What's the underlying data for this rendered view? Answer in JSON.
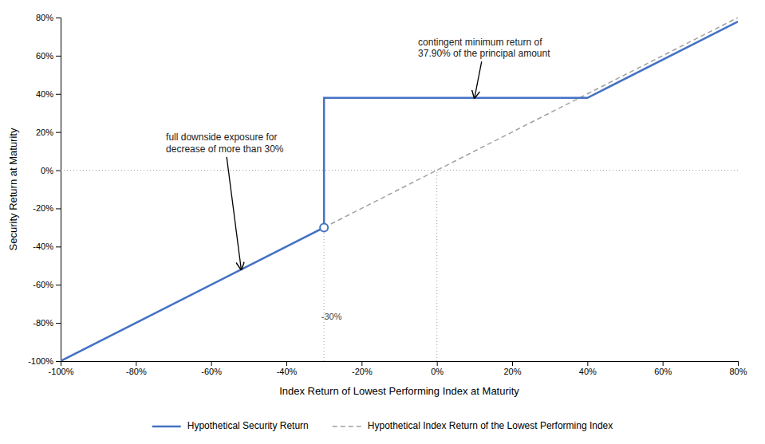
{
  "chart_data": {
    "type": "line",
    "xlabel": "Index Return of Lowest Performing Index at Maturity",
    "ylabel": "Security Return at Maturity",
    "xlim": [
      -1.0,
      0.8
    ],
    "ylim": [
      -1.0,
      0.8
    ],
    "xticks": [
      {
        "value": -1.0,
        "label": "-100%"
      },
      {
        "value": -0.8,
        "label": "-80%"
      },
      {
        "value": -0.6,
        "label": "-60%"
      },
      {
        "value": -0.4,
        "label": "-40%"
      },
      {
        "value": -0.2,
        "label": "-20%"
      },
      {
        "value": 0.0,
        "label": "0%"
      },
      {
        "value": 0.2,
        "label": "20%"
      },
      {
        "value": 0.4,
        "label": "40%"
      },
      {
        "value": 0.6,
        "label": "60%"
      },
      {
        "value": 0.8,
        "label": "80%"
      }
    ],
    "yticks": [
      {
        "value": -1.0,
        "label": "-100%"
      },
      {
        "value": -0.8,
        "label": "-80%"
      },
      {
        "value": -0.6,
        "label": "-60%"
      },
      {
        "value": -0.4,
        "label": "-40%"
      },
      {
        "value": -0.2,
        "label": "-20%"
      },
      {
        "value": 0.0,
        "label": "0%"
      },
      {
        "value": 0.2,
        "label": "20%"
      },
      {
        "value": 0.4,
        "label": "40%"
      },
      {
        "value": 0.6,
        "label": "60%"
      },
      {
        "value": 0.8,
        "label": "80%"
      }
    ],
    "grid": false,
    "legend": "bottom",
    "series": [
      {
        "name": "Hypothetical Security Return",
        "color": "#4472C4",
        "line_style": "solid",
        "x": [
          -1.0,
          -0.3,
          -0.3,
          0.4,
          0.8
        ],
        "values": [
          -1.0,
          -0.3,
          0.379,
          0.379,
          0.779
        ]
      },
      {
        "name": "Hypothetical Index Return of the Lowest Performing Index",
        "color": "#A0A0A0",
        "line_style": "dashed",
        "x": [
          -1.0,
          0.8
        ],
        "values": [
          -1.0,
          0.8
        ]
      }
    ],
    "points": [
      {
        "x": -0.3,
        "y": -0.3,
        "marker": "open-circle",
        "color": "#4472C4"
      }
    ],
    "reference_lines": [
      {
        "x": [
          -1.0,
          0.8
        ],
        "y": [
          0,
          0
        ],
        "line_style": "dotted",
        "color": "#A0A0A0"
      },
      {
        "x": [
          -0.3,
          -0.3
        ],
        "y": [
          -1.0,
          0.379
        ],
        "line_style": "dotted",
        "color": "#A0A0A0"
      },
      {
        "x": [
          0.0,
          0.0
        ],
        "y": [
          -1.0,
          0.0
        ],
        "line_style": "dotted",
        "color": "#A0A0A0"
      }
    ],
    "annotations": [
      {
        "text": "-30%",
        "x": -0.28,
        "y": -0.77
      },
      {
        "text": "contingent minimum return of\n37.90% of the principal amount",
        "xy": [
          0.1,
          0.379
        ],
        "xytext": [
          -0.05,
          0.7
        ]
      },
      {
        "text": "full downside exposure for\ndecrease of more than 30%",
        "xy": [
          -0.52,
          -0.52
        ],
        "xytext": [
          -0.72,
          0.2
        ]
      }
    ]
  }
}
